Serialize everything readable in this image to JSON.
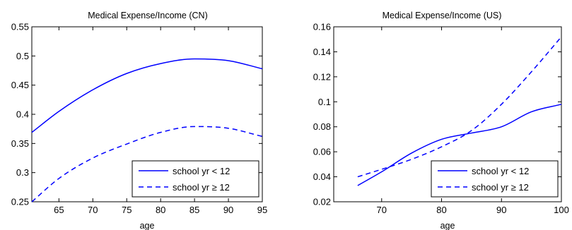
{
  "chart_data": [
    {
      "type": "line",
      "title": "Medical Expense/Income (CN)",
      "xlabel": "age",
      "ylabel": "",
      "xlim": [
        61,
        95
      ],
      "ylim": [
        0.25,
        0.55
      ],
      "xticks": [
        65,
        70,
        75,
        80,
        85,
        90,
        95
      ],
      "yticks": [
        0.25,
        0.3,
        0.35,
        0.4,
        0.45,
        0.5,
        0.55
      ],
      "xtick_labels": [
        "65",
        "70",
        "75",
        "80",
        "85",
        "90",
        "95"
      ],
      "ytick_labels": [
        "0.25",
        "0.3",
        "0.35",
        "0.4",
        "0.45",
        "0.5",
        "0.55"
      ],
      "grid": false,
      "legend_position": "bottom-right",
      "series": [
        {
          "name": "school yr < 12",
          "style": "solid",
          "color": "#0000ff",
          "x": [
            61,
            65,
            70,
            75,
            80,
            85,
            90,
            95
          ],
          "y": [
            0.369,
            0.405,
            0.442,
            0.47,
            0.487,
            0.495,
            0.492,
            0.478
          ]
        },
        {
          "name": "school yr ≥ 12",
          "style": "dashed",
          "color": "#0000ff",
          "x": [
            61,
            65,
            70,
            75,
            80,
            85,
            90,
            95
          ],
          "y": [
            0.25,
            0.29,
            0.325,
            0.349,
            0.369,
            0.379,
            0.376,
            0.362
          ]
        }
      ]
    },
    {
      "type": "line",
      "title": "Medical Expense/Income (US)",
      "xlabel": "age",
      "ylabel": "",
      "xlim": [
        62,
        100
      ],
      "ylim": [
        0.02,
        0.16
      ],
      "xticks": [
        70,
        80,
        90,
        100
      ],
      "yticks": [
        0.02,
        0.04,
        0.06,
        0.08,
        0.1,
        0.12,
        0.14,
        0.16
      ],
      "xtick_labels": [
        "70",
        "80",
        "90",
        "100"
      ],
      "ytick_labels": [
        "0.02",
        "0.04",
        "0.06",
        "0.08",
        "0.1",
        "0.12",
        "0.14",
        "0.16"
      ],
      "grid": false,
      "legend_position": "bottom-right",
      "series": [
        {
          "name": "school yr < 12",
          "style": "solid",
          "color": "#0000ff",
          "x": [
            66,
            70,
            75,
            80,
            85,
            90,
            95,
            100
          ],
          "y": [
            0.033,
            0.044,
            0.059,
            0.07,
            0.075,
            0.08,
            0.092,
            0.098
          ]
        },
        {
          "name": "school yr ≥ 12",
          "style": "dashed",
          "color": "#0000ff",
          "x": [
            66,
            70,
            75,
            80,
            85,
            90,
            95,
            100
          ],
          "y": [
            0.04,
            0.046,
            0.054,
            0.064,
            0.077,
            0.098,
            0.124,
            0.152
          ]
        }
      ]
    }
  ]
}
